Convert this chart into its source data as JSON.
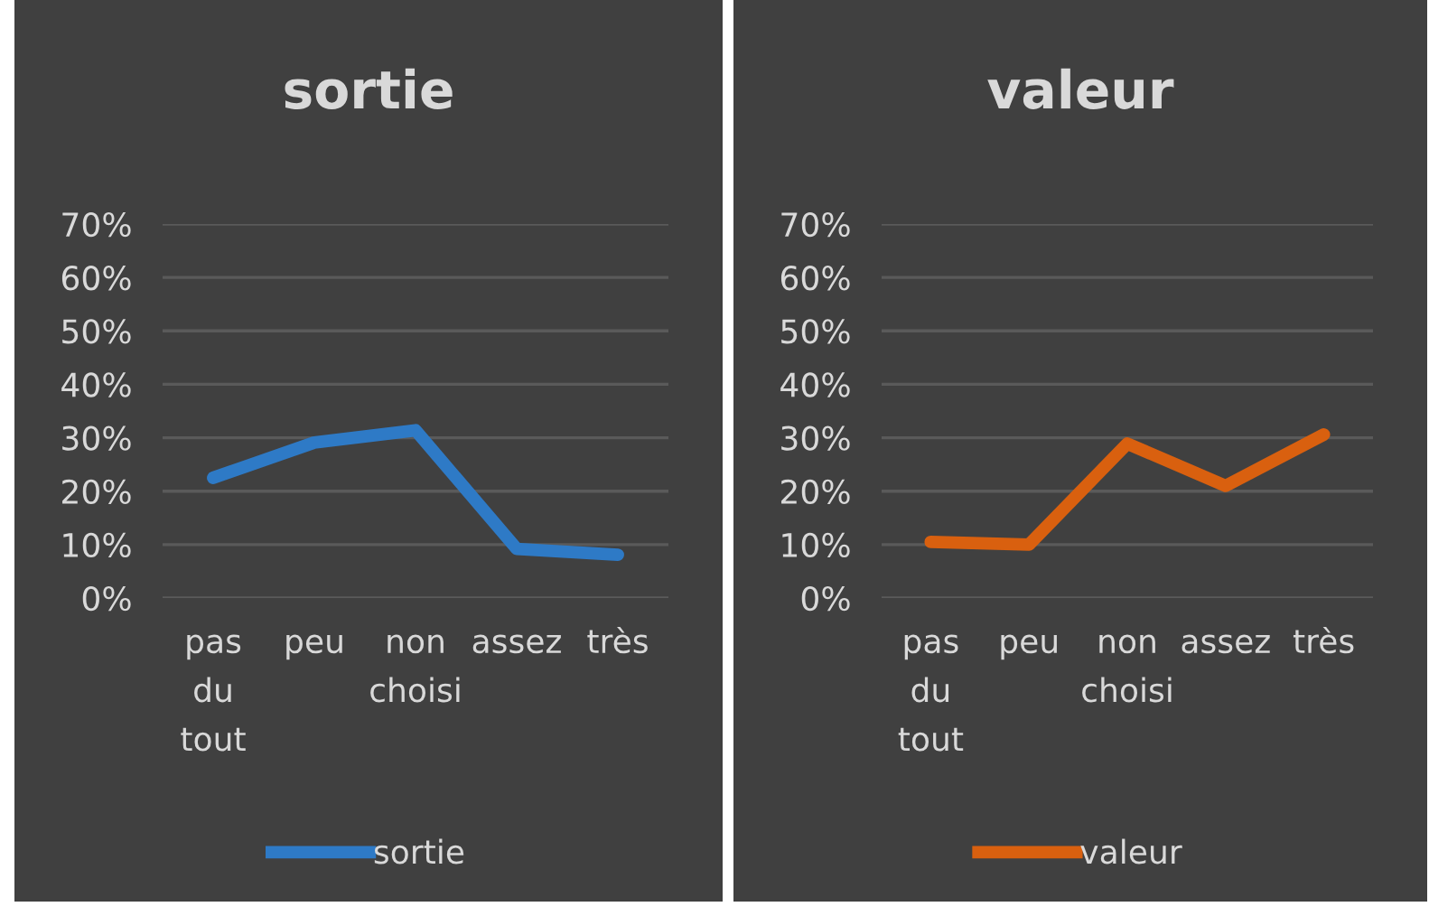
{
  "chart_data": [
    {
      "type": "line",
      "title": "sortie",
      "categories": [
        "pas\ndu\ntout",
        "peu",
        "non\nchoisi",
        "assez",
        "très"
      ],
      "series": [
        {
          "name": "sortie",
          "color": "#2e7ac6",
          "values": [
            22.5,
            29.1,
            31.4,
            9.2,
            8.1
          ]
        }
      ],
      "ylim": [
        0,
        70
      ],
      "yticks": [
        {
          "value": 0,
          "label": "0%"
        },
        {
          "value": 10,
          "label": "10%"
        },
        {
          "value": 20,
          "label": "20%"
        },
        {
          "value": 30,
          "label": "30%"
        },
        {
          "value": 40,
          "label": "40%"
        },
        {
          "value": 50,
          "label": "50%"
        },
        {
          "value": 60,
          "label": "60%"
        },
        {
          "value": 70,
          "label": "70%"
        }
      ],
      "grid": "y",
      "legend": "bottom",
      "marker": "none",
      "line_style": "solid"
    },
    {
      "type": "line",
      "title": "valeur",
      "categories": [
        "pas\ndu\ntout",
        "peu",
        "non\nchoisi",
        "assez",
        "très"
      ],
      "series": [
        {
          "name": "valeur",
          "color": "#d9600f",
          "values": [
            10.5,
            10.0,
            28.9,
            21.0,
            30.6
          ]
        }
      ],
      "ylim": [
        0,
        70
      ],
      "yticks": [
        {
          "value": 0,
          "label": "0%"
        },
        {
          "value": 10,
          "label": "10%"
        },
        {
          "value": 20,
          "label": "20%"
        },
        {
          "value": 30,
          "label": "30%"
        },
        {
          "value": 40,
          "label": "40%"
        },
        {
          "value": 50,
          "label": "50%"
        },
        {
          "value": 60,
          "label": "60%"
        },
        {
          "value": 70,
          "label": "70%"
        }
      ],
      "grid": "y",
      "legend": "bottom",
      "marker": "none",
      "line_style": "solid"
    }
  ]
}
